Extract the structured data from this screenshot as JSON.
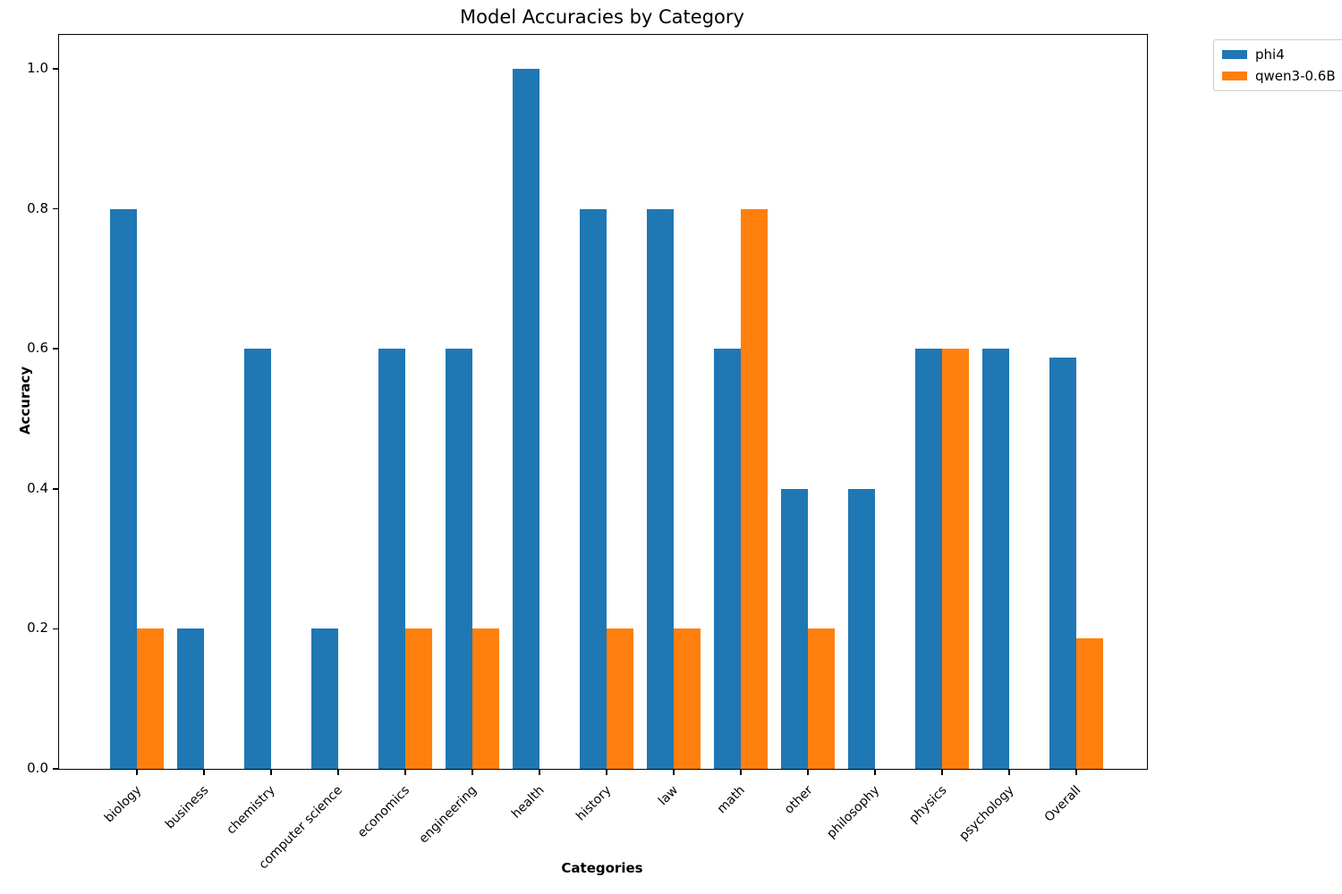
{
  "chart_data": {
    "type": "bar",
    "title": "Model Accuracies by Category",
    "xlabel": "Categories",
    "ylabel": "Accuracy",
    "categories": [
      "biology",
      "business",
      "chemistry",
      "computer science",
      "economics",
      "engineering",
      "health",
      "history",
      "law",
      "math",
      "other",
      "philosophy",
      "physics",
      "psychology",
      "Overall"
    ],
    "series": [
      {
        "name": "phi4",
        "color": "#1f77b4",
        "values": [
          0.8,
          0.2,
          0.6,
          0.2,
          0.6,
          0.6,
          1.0,
          0.8,
          0.8,
          0.6,
          0.4,
          0.4,
          0.6,
          0.6,
          0.587
        ]
      },
      {
        "name": "qwen3-0.6B",
        "color": "#ff7f0e",
        "values": [
          0.2,
          0,
          0,
          0,
          0.2,
          0.2,
          0,
          0.2,
          0.2,
          0.8,
          0.2,
          0,
          0.6,
          0,
          0.187
        ]
      }
    ],
    "yticks": [
      "0.0",
      "0.2",
      "0.4",
      "0.6",
      "0.8",
      "1.0"
    ],
    "ylim": [
      0,
      1.05
    ],
    "grid": false,
    "legend_position": "outside-upper-right"
  }
}
